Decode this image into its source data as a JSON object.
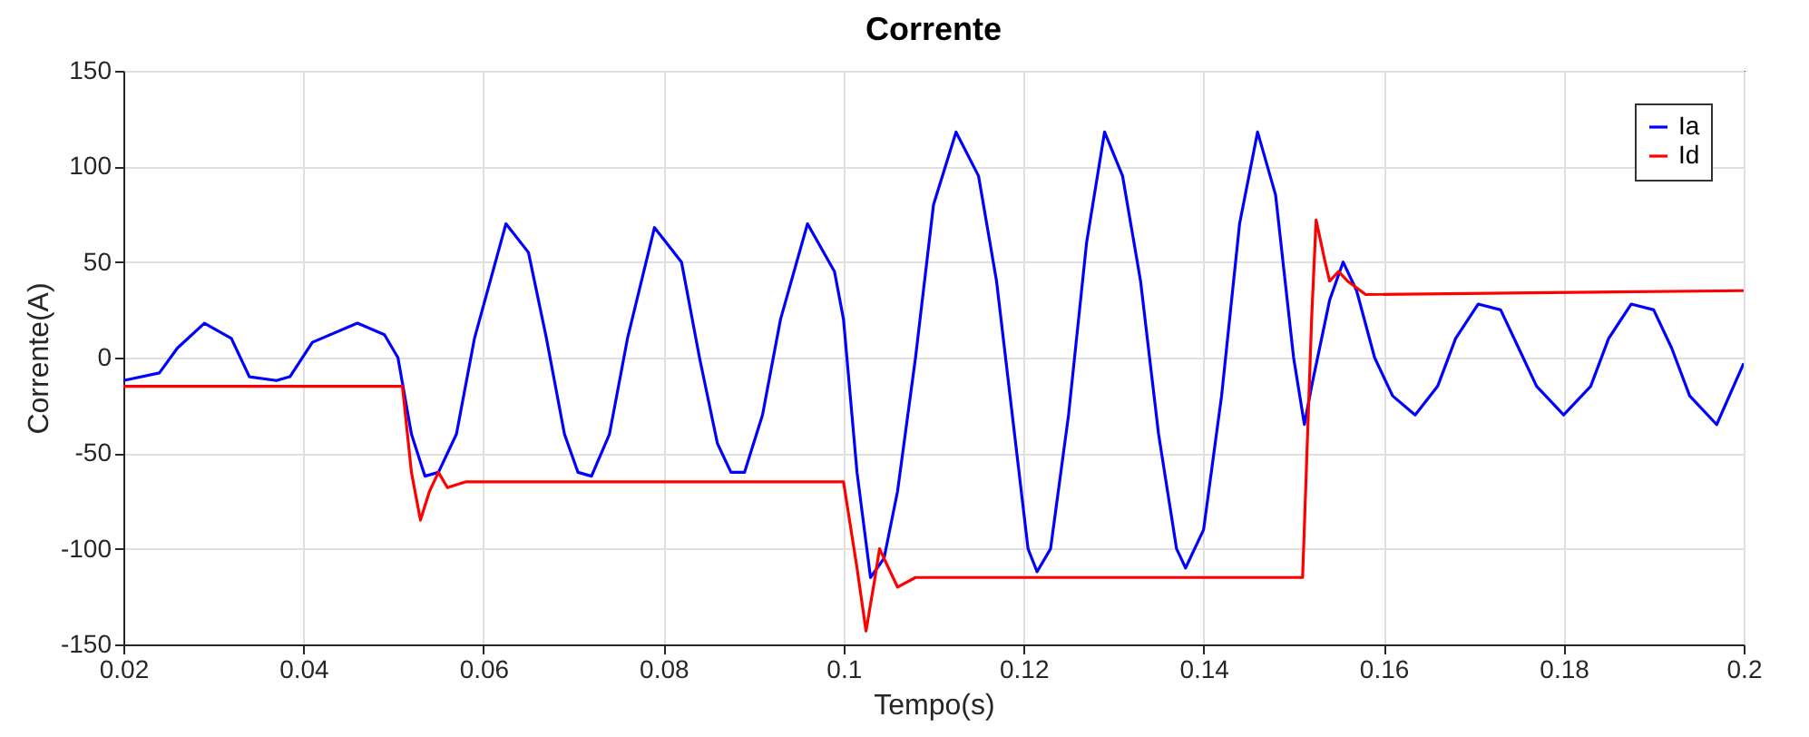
{
  "chart_data": {
    "type": "line",
    "title": "Corrente",
    "xlabel": "Tempo(s)",
    "ylabel": "Corrente(A)",
    "xlim": [
      0.02,
      0.2
    ],
    "xticks": [
      0.02,
      0.04,
      0.06,
      0.08,
      0.1,
      0.12,
      0.14,
      0.16,
      0.18,
      0.2
    ],
    "ylim": [
      -150,
      150
    ],
    "yticks": [
      -150,
      -100,
      -50,
      0,
      50,
      100,
      150
    ],
    "grid": true,
    "legend": "top right",
    "series": [
      {
        "name": "Ia",
        "color": "#0000ff",
        "x": [
          0.02,
          0.024,
          0.026,
          0.029,
          0.032,
          0.034,
          0.037,
          0.0385,
          0.041,
          0.046,
          0.049,
          0.0505,
          0.052,
          0.0535,
          0.055,
          0.057,
          0.059,
          0.0625,
          0.065,
          0.067,
          0.069,
          0.0705,
          0.072,
          0.074,
          0.076,
          0.079,
          0.082,
          0.084,
          0.086,
          0.0875,
          0.089,
          0.091,
          0.093,
          0.096,
          0.099,
          0.1,
          0.1015,
          0.103,
          0.1045,
          0.106,
          0.108,
          0.11,
          0.1125,
          0.115,
          0.117,
          0.119,
          0.1205,
          0.1215,
          0.123,
          0.125,
          0.127,
          0.129,
          0.131,
          0.133,
          0.135,
          0.137,
          0.138,
          0.14,
          0.142,
          0.144,
          0.146,
          0.148,
          0.15,
          0.1512,
          0.152,
          0.154,
          0.1555,
          0.157,
          0.159,
          0.161,
          0.1635,
          0.166,
          0.168,
          0.1705,
          0.173,
          0.175,
          0.177,
          0.18,
          0.183,
          0.185,
          0.1875,
          0.19,
          0.192,
          0.194,
          0.197,
          0.2
        ],
        "values": [
          -12,
          -8,
          5,
          18,
          10,
          -10,
          -12,
          -10,
          8,
          18,
          12,
          0,
          -40,
          -62,
          -60,
          -40,
          10,
          70,
          55,
          10,
          -40,
          -60,
          -62,
          -40,
          10,
          68,
          50,
          0,
          -45,
          -60,
          -60,
          -30,
          20,
          70,
          45,
          20,
          -60,
          -115,
          -105,
          -70,
          0,
          80,
          118,
          95,
          40,
          -40,
          -100,
          -112,
          -100,
          -30,
          60,
          118,
          95,
          40,
          -40,
          -100,
          -110,
          -90,
          -20,
          70,
          118,
          85,
          0,
          -35,
          -15,
          30,
          50,
          35,
          0,
          -20,
          -30,
          -15,
          10,
          28,
          25,
          5,
          -15,
          -30,
          -15,
          10,
          28,
          25,
          5,
          -20,
          -35,
          -3
        ]
      },
      {
        "name": "Id",
        "color": "#ff0000",
        "x": [
          0.02,
          0.051,
          0.052,
          0.053,
          0.054,
          0.055,
          0.056,
          0.058,
          0.1,
          0.1015,
          0.1025,
          0.1035,
          0.104,
          0.105,
          0.106,
          0.108,
          0.151,
          0.152,
          0.1525,
          0.1535,
          0.154,
          0.155,
          0.156,
          0.158,
          0.2
        ],
        "values": [
          -15,
          -15,
          -60,
          -85,
          -70,
          -60,
          -68,
          -65,
          -65,
          -110,
          -143,
          -115,
          -100,
          -110,
          -120,
          -115,
          -115,
          20,
          72,
          50,
          40,
          45,
          40,
          33,
          35
        ]
      }
    ]
  }
}
